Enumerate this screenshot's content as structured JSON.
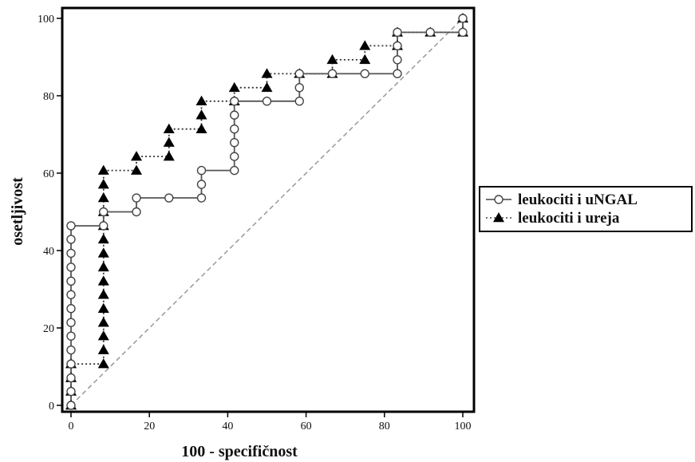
{
  "chart_data": {
    "type": "line",
    "title": "",
    "xlabel": "100 - specifičnost",
    "ylabel": "osetljivost",
    "xlim": [
      0,
      100
    ],
    "ylim": [
      0,
      100
    ],
    "xticks": [
      0,
      20,
      40,
      60,
      80,
      100
    ],
    "yticks": [
      0,
      20,
      40,
      60,
      80,
      100
    ],
    "grid": false,
    "legend_position": "right",
    "diagonal_reference": true,
    "series": [
      {
        "name": "leukociti i uNGAL",
        "marker": "open-circle",
        "line_style": "solid",
        "points": [
          [
            0,
            0
          ],
          [
            0,
            3.6
          ],
          [
            0,
            7.1
          ],
          [
            0,
            10.7
          ],
          [
            0,
            14.3
          ],
          [
            0,
            17.9
          ],
          [
            0,
            21.4
          ],
          [
            0,
            25
          ],
          [
            0,
            28.6
          ],
          [
            0,
            32.1
          ],
          [
            0,
            35.7
          ],
          [
            0,
            39.3
          ],
          [
            0,
            42.9
          ],
          [
            0,
            46.4
          ],
          [
            8.3,
            46.4
          ],
          [
            8.3,
            50
          ],
          [
            16.7,
            50
          ],
          [
            16.7,
            53.6
          ],
          [
            25,
            53.6
          ],
          [
            33.3,
            53.6
          ],
          [
            33.3,
            57.1
          ],
          [
            33.3,
            60.7
          ],
          [
            41.7,
            60.7
          ],
          [
            41.7,
            64.3
          ],
          [
            41.7,
            67.9
          ],
          [
            41.7,
            71.4
          ],
          [
            41.7,
            75
          ],
          [
            41.7,
            78.6
          ],
          [
            50,
            78.6
          ],
          [
            58.3,
            78.6
          ],
          [
            58.3,
            82.1
          ],
          [
            58.3,
            85.7
          ],
          [
            66.7,
            85.7
          ],
          [
            75,
            85.7
          ],
          [
            83.3,
            85.7
          ],
          [
            83.3,
            89.3
          ],
          [
            83.3,
            92.9
          ],
          [
            83.3,
            96.4
          ],
          [
            91.7,
            96.4
          ],
          [
            100,
            96.4
          ],
          [
            100,
            100
          ]
        ]
      },
      {
        "name": "leukociti i ureja",
        "marker": "filled-triangle",
        "line_style": "dotted",
        "points": [
          [
            0,
            0
          ],
          [
            0,
            3.6
          ],
          [
            0,
            7.1
          ],
          [
            0,
            10.7
          ],
          [
            8.3,
            10.7
          ],
          [
            8.3,
            14.3
          ],
          [
            8.3,
            17.9
          ],
          [
            8.3,
            21.4
          ],
          [
            8.3,
            25
          ],
          [
            8.3,
            28.6
          ],
          [
            8.3,
            32.1
          ],
          [
            8.3,
            35.7
          ],
          [
            8.3,
            39.3
          ],
          [
            8.3,
            42.9
          ],
          [
            8.3,
            46.4
          ],
          [
            8.3,
            50
          ],
          [
            8.3,
            53.6
          ],
          [
            8.3,
            57.1
          ],
          [
            8.3,
            60.7
          ],
          [
            16.7,
            60.7
          ],
          [
            16.7,
            64.3
          ],
          [
            25,
            64.3
          ],
          [
            25,
            67.9
          ],
          [
            25,
            71.4
          ],
          [
            33.3,
            71.4
          ],
          [
            33.3,
            75
          ],
          [
            33.3,
            78.6
          ],
          [
            41.7,
            78.6
          ],
          [
            41.7,
            82.1
          ],
          [
            50,
            82.1
          ],
          [
            50,
            85.7
          ],
          [
            58.3,
            85.7
          ],
          [
            66.7,
            85.7
          ],
          [
            66.7,
            89.3
          ],
          [
            75,
            89.3
          ],
          [
            75,
            92.9
          ],
          [
            83.3,
            92.9
          ],
          [
            83.3,
            96.4
          ],
          [
            91.7,
            96.4
          ],
          [
            100,
            96.4
          ],
          [
            100,
            100
          ]
        ]
      }
    ]
  }
}
